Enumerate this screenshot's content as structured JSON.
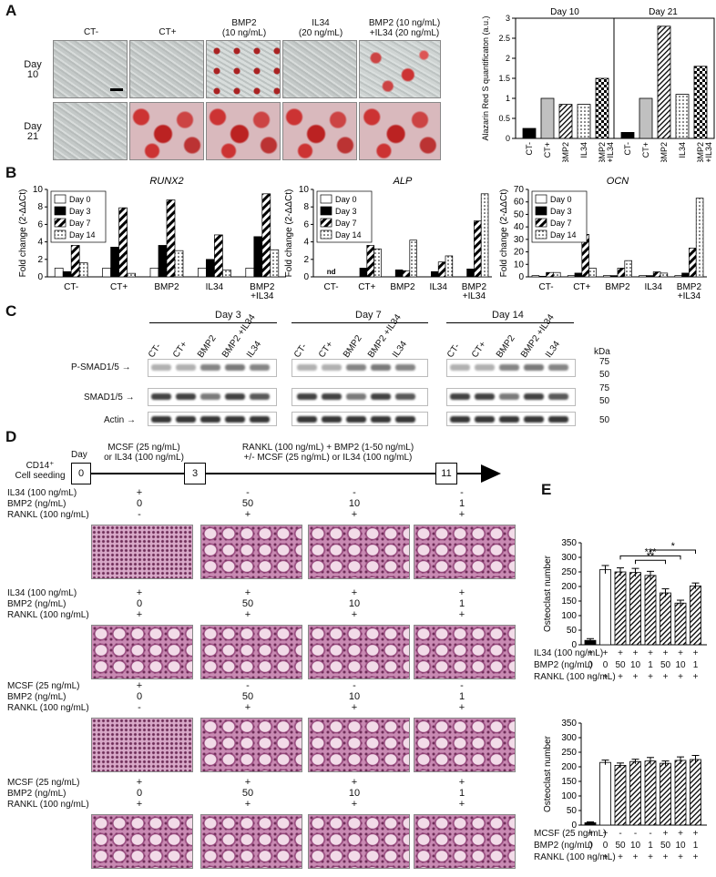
{
  "panel_labels": [
    "A",
    "B",
    "C",
    "D",
    "E"
  ],
  "panelA": {
    "columns": [
      "CT-",
      "CT+",
      "BMP2\n(10 ng/mL)",
      "IL34\n(20 ng/mL)",
      "BMP2 (10 ng/mL)\n+IL34 (20 ng/mL)"
    ],
    "rows": [
      "Day\n10",
      "Day\n21"
    ]
  },
  "chart_data": [
    {
      "type": "bar",
      "ylabel": "Alazarin Red S quantificaton (a.u.)",
      "ylim": [
        0,
        3
      ],
      "yticks": [
        "0",
        "0.5",
        "1",
        "1.5",
        "2",
        "2.5",
        "3"
      ],
      "groups": [
        "Day 10",
        "Day 21"
      ],
      "categories": [
        "CT-",
        "CT+",
        "BMP2",
        "IL34",
        "BMP2\n+IL34"
      ],
      "series": [
        {
          "name": "Day 10",
          "values": [
            0.25,
            1.0,
            0.85,
            0.85,
            1.5
          ]
        },
        {
          "name": "Day 21",
          "values": [
            0.15,
            1.0,
            2.8,
            1.1,
            1.8
          ]
        }
      ]
    },
    {
      "type": "bar",
      "title": "RUNX2",
      "ylabel": "Fold change (2-ΔΔCt)",
      "ylim": [
        0,
        10
      ],
      "yticks": [
        "0",
        "2",
        "4",
        "6",
        "8",
        "10"
      ],
      "categories": [
        "CT-",
        "CT+",
        "BMP2",
        "IL34",
        "BMP2\n+IL34"
      ],
      "series": [
        {
          "name": "Day 0",
          "values": [
            1,
            1,
            1,
            1,
            1
          ]
        },
        {
          "name": "Day 3",
          "values": [
            0.6,
            3.4,
            3.6,
            2.0,
            4.6
          ]
        },
        {
          "name": "Day 7",
          "values": [
            3.6,
            7.9,
            8.8,
            4.8,
            9.5
          ]
        },
        {
          "name": "Day 14",
          "values": [
            1.6,
            0.4,
            3.0,
            0.8,
            3.1
          ]
        }
      ]
    },
    {
      "type": "bar",
      "title": "ALP",
      "ylabel": "Fold change (2-ΔΔCt)",
      "ylim": [
        0,
        10
      ],
      "yticks": [
        "0",
        "2",
        "4",
        "6",
        "8",
        "10"
      ],
      "categories": [
        "CT-",
        "CT+",
        "BMP2",
        "IL34",
        "BMP2\n+IL34"
      ],
      "nd_label": "nd",
      "series": [
        {
          "name": "Day 0",
          "values": [
            0,
            0,
            0,
            0,
            0
          ]
        },
        {
          "name": "Day 3",
          "values": [
            0,
            1.0,
            0.8,
            0.6,
            0.9
          ]
        },
        {
          "name": "Day 7",
          "values": [
            0,
            3.6,
            0.7,
            1.7,
            6.4
          ]
        },
        {
          "name": "Day 14",
          "values": [
            0,
            3.2,
            4.2,
            2.4,
            9.5
          ]
        }
      ]
    },
    {
      "type": "bar",
      "title": "OCN",
      "ylabel": "Fold change (2-ΔΔCt)",
      "ylim": [
        0,
        70
      ],
      "yticks": [
        "0",
        "10",
        "20",
        "30",
        "40",
        "50",
        "60",
        "70"
      ],
      "categories": [
        "CT-",
        "CT+",
        "BMP2",
        "IL34",
        "BMP2\n+IL34"
      ],
      "series": [
        {
          "name": "Day 0",
          "values": [
            1,
            1,
            1,
            1,
            1
          ]
        },
        {
          "name": "Day 3",
          "values": [
            0.5,
            3,
            1,
            1,
            3
          ]
        },
        {
          "name": "Day 7",
          "values": [
            3.5,
            34,
            7,
            4,
            23
          ]
        },
        {
          "name": "Day 14",
          "values": [
            3.5,
            7,
            13,
            3,
            63
          ]
        }
      ]
    },
    {
      "type": "bar",
      "ylabel": "Osteoclast number",
      "ylim": [
        0,
        350
      ],
      "yticks": [
        "0",
        "50",
        "100",
        "150",
        "200",
        "250",
        "300",
        "350"
      ],
      "values": [
        15,
        258,
        250,
        248,
        238,
        178,
        143,
        202
      ],
      "errors": [
        6,
        14,
        14,
        14,
        14,
        14,
        10,
        10
      ],
      "significance": [
        "**",
        "***",
        "*"
      ],
      "rows": [
        {
          "label": "IL34 (100 ng/mL)",
          "values": [
            "+",
            "+",
            "+",
            "+",
            "+",
            "+",
            "+",
            "+"
          ]
        },
        {
          "label": "BMP2 (ng/mL)",
          "values": [
            "0",
            "0",
            "50",
            "10",
            "1",
            "50",
            "10",
            "1"
          ]
        },
        {
          "label": "RANKL (100 ng/mL)",
          "values": [
            "-",
            "+",
            "+",
            "+",
            "+",
            "+",
            "+",
            "+"
          ]
        }
      ]
    },
    {
      "type": "bar",
      "ylabel": "Osteoclast number",
      "ylim": [
        0,
        350
      ],
      "yticks": [
        "0",
        "50",
        "100",
        "150",
        "200",
        "250",
        "300",
        "350"
      ],
      "values": [
        8,
        215,
        205,
        218,
        220,
        212,
        222,
        225
      ],
      "errors": [
        3,
        8,
        8,
        8,
        12,
        8,
        12,
        14
      ],
      "rows": [
        {
          "label": "MCSF (25 ng/mL)",
          "values": [
            "+",
            "+",
            "-",
            "-",
            "-",
            "+",
            "+",
            "+"
          ]
        },
        {
          "label": "BMP2 (ng/mL)",
          "values": [
            "0",
            "0",
            "50",
            "10",
            "1",
            "50",
            "10",
            "1"
          ]
        },
        {
          "label": "RANKL (100 ng/mL)",
          "values": [
            "-",
            "+",
            "+",
            "+",
            "+",
            "+",
            "+",
            "+"
          ]
        }
      ]
    }
  ],
  "panelC": {
    "days": [
      "Day 3",
      "Day 7",
      "Day 14"
    ],
    "lanes": [
      [
        "CT-",
        "CT+",
        "BMP2",
        "BMP2\n+IL34",
        "IL34"
      ],
      [
        "CT-",
        "CT+",
        "BMP2",
        "BMP2\n+IL34",
        "IL34"
      ],
      [
        "CT-",
        "CT+",
        "BMP2",
        "BMP2\n+IL34",
        "IL34"
      ]
    ],
    "proteins": [
      "P-SMAD1/5",
      "SMAD1/5",
      "Actin"
    ],
    "kda_label": "kDa",
    "kda_marks": [
      "75",
      "50",
      "75",
      "50",
      "50"
    ]
  },
  "panelD": {
    "cell_label": "CD14⁺\nCell seeding",
    "day_label": "Day",
    "day_marks": [
      "0",
      "3",
      "11"
    ],
    "step1": "MCSF (25 ng/mL)\nor IL34 (100 ng/mL)",
    "step2": "RANKL (100 ng/mL) + BMP2 (1-50 ng/mL)\n+/- MCSF (25 ng/mL) or IL34 (100 ng/mL)",
    "blocks": [
      {
        "rows": [
          {
            "label": "IL34 (100 ng/mL)",
            "vals": [
              "+",
              "-",
              "-",
              "-"
            ]
          },
          {
            "label": "BMP2 (ng/mL)",
            "vals": [
              "0",
              "50",
              "10",
              "1"
            ]
          },
          {
            "label": "RANKL (100 ng/mL)",
            "vals": [
              "-",
              "+",
              "+",
              "+"
            ]
          }
        ]
      },
      {
        "rows": [
          {
            "label": "IL34 (100 ng/mL)",
            "vals": [
              "+",
              "+",
              "+",
              "+"
            ]
          },
          {
            "label": "BMP2 (ng/mL)",
            "vals": [
              "0",
              "50",
              "10",
              "1"
            ]
          },
          {
            "label": "RANKL (100 ng/mL)",
            "vals": [
              "+",
              "+",
              "+",
              "+"
            ]
          }
        ]
      },
      {
        "rows": [
          {
            "label": "MCSF (25 ng/mL)",
            "vals": [
              "+",
              "-",
              "-",
              "-"
            ]
          },
          {
            "label": "BMP2 (ng/mL)",
            "vals": [
              "0",
              "50",
              "10",
              "1"
            ]
          },
          {
            "label": "RANKL (100 ng/mL)",
            "vals": [
              "-",
              "+",
              "+",
              "+"
            ]
          }
        ]
      },
      {
        "rows": [
          {
            "label": "MCSF (25 ng/mL)",
            "vals": [
              "+",
              "+",
              "+",
              "+"
            ]
          },
          {
            "label": "BMP2 (ng/mL)",
            "vals": [
              "0",
              "50",
              "10",
              "1"
            ]
          },
          {
            "label": "RANKL (100 ng/mL)",
            "vals": [
              "+",
              "+",
              "+",
              "+"
            ]
          }
        ]
      }
    ]
  }
}
